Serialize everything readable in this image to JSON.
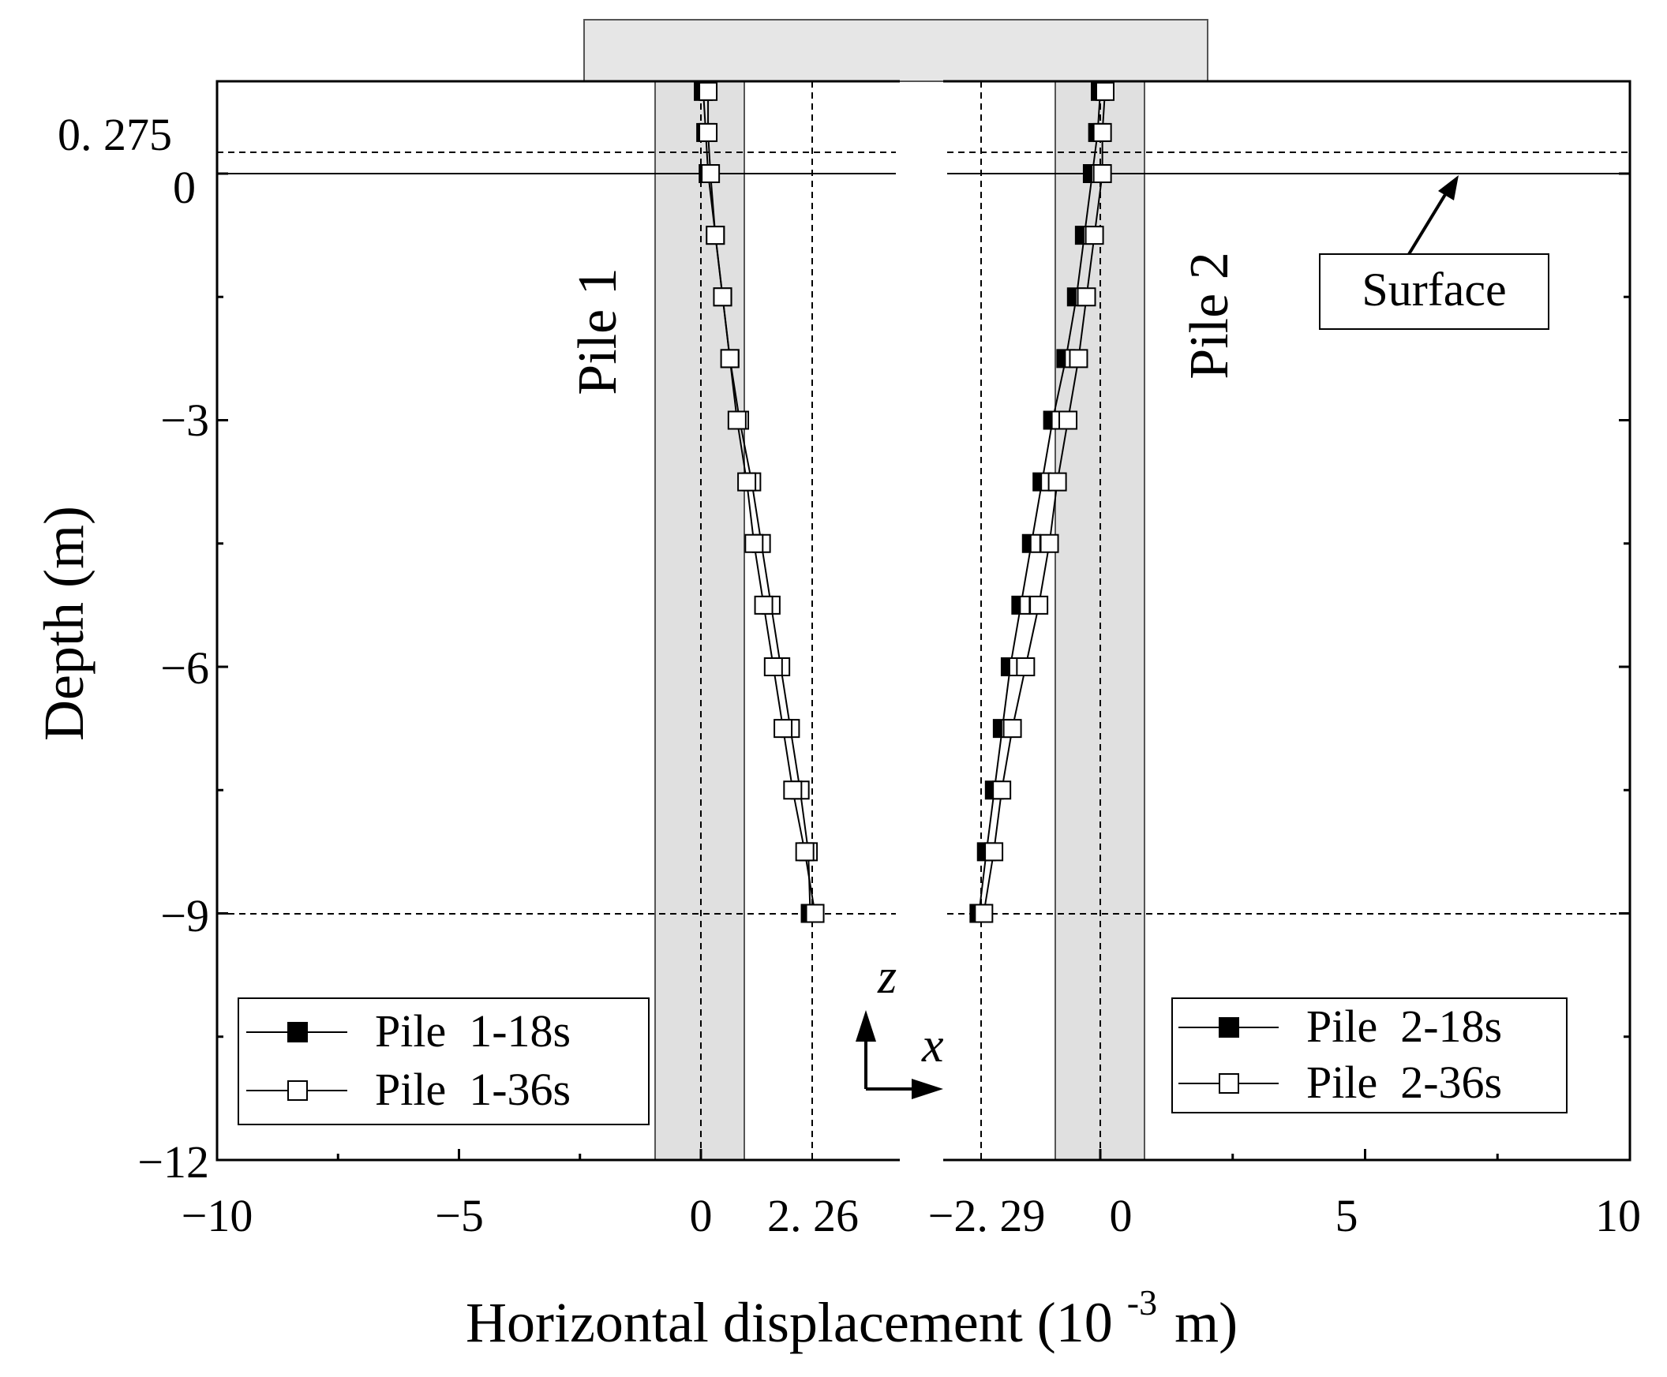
{
  "chart_data": {
    "type": "line",
    "xlabel": "Horizontal displacement (10",
    "xlabel_exp": "-3",
    "xlabel_end": "m)",
    "ylabel": "Depth (m)",
    "ylim": [
      -12,
      1.0
    ],
    "left_panel": {
      "xlim": [
        -10,
        4.1
      ],
      "xticks": [
        {
          "value": -10,
          "label": "−10"
        },
        {
          "value": -5,
          "label": "−5"
        },
        {
          "value": 0,
          "label": "0"
        },
        {
          "value": 2.26,
          "label": "2. 26"
        }
      ],
      "pile_label": "Pile 1",
      "series": [
        {
          "name": "Pile  1-18s",
          "marker": "half-filled-square",
          "x": [
            0.05,
            0.1,
            0.15,
            0.3,
            0.45,
            0.6,
            0.8,
            1.05,
            1.25,
            1.45,
            1.65,
            1.85,
            2.05,
            2.22,
            2.26
          ],
          "y": [
            1.0,
            0.5,
            0.0,
            -0.75,
            -1.5,
            -2.25,
            -3.0,
            -3.75,
            -4.5,
            -5.25,
            -6.0,
            -6.75,
            -7.5,
            -8.25,
            -9.0
          ]
        },
        {
          "name": "Pile  1-36s",
          "marker": "open-square",
          "x": [
            0.05,
            0.05,
            0.1,
            0.2,
            0.35,
            0.5,
            0.65,
            0.85,
            1.0,
            1.2,
            1.4,
            1.6,
            1.8,
            2.05,
            2.26
          ],
          "y": [
            1.0,
            0.5,
            0.0,
            -0.75,
            -1.5,
            -2.25,
            -3.0,
            -3.75,
            -4.5,
            -5.25,
            -6.0,
            -6.75,
            -7.5,
            -8.25,
            -9.0
          ]
        }
      ]
    },
    "right_panel": {
      "xlim": [
        -3.55,
        10
      ],
      "xticks": [
        {
          "value": -2.29,
          "label": "−2. 29"
        },
        {
          "value": 0,
          "label": "0"
        },
        {
          "value": 5,
          "label": "5"
        },
        {
          "value": 10,
          "label": "10"
        }
      ],
      "pile_label": "Pile 2",
      "series": [
        {
          "name": "Pile  2-18s",
          "marker": "half-filled-square",
          "x": [
            0.0,
            -0.05,
            -0.15,
            -0.3,
            -0.45,
            -0.65,
            -0.9,
            -1.1,
            -1.3,
            -1.5,
            -1.7,
            -1.85,
            -2.0,
            -2.15,
            -2.29
          ],
          "y": [
            1.0,
            0.5,
            0.0,
            -0.75,
            -1.5,
            -2.25,
            -3.0,
            -3.75,
            -4.5,
            -5.25,
            -6.0,
            -6.75,
            -7.5,
            -8.25,
            -9.0
          ]
        },
        {
          "name": "Pile  2-36s",
          "marker": "open-square",
          "x": [
            0.0,
            -0.05,
            -0.05,
            -0.2,
            -0.35,
            -0.5,
            -0.7,
            -0.9,
            -1.05,
            -1.25,
            -1.5,
            -1.75,
            -1.95,
            -2.1,
            -2.29
          ],
          "y": [
            1.0,
            0.5,
            0.0,
            -0.75,
            -1.5,
            -2.25,
            -3.0,
            -3.75,
            -4.5,
            -5.25,
            -6.0,
            -6.75,
            -7.5,
            -8.25,
            -9.0
          ]
        }
      ]
    },
    "yticks": [
      {
        "value": 0.275,
        "label": "0. 275"
      },
      {
        "value": 0,
        "label": "0"
      },
      {
        "value": -3,
        "label": "−3"
      },
      {
        "value": -6,
        "label": "−6"
      },
      {
        "value": -9,
        "label": "−9"
      },
      {
        "value": -12,
        "label": "−12"
      }
    ],
    "surface_label": "Surface",
    "axis_z_label": "z",
    "axis_x_label": "x",
    "grid": false
  }
}
